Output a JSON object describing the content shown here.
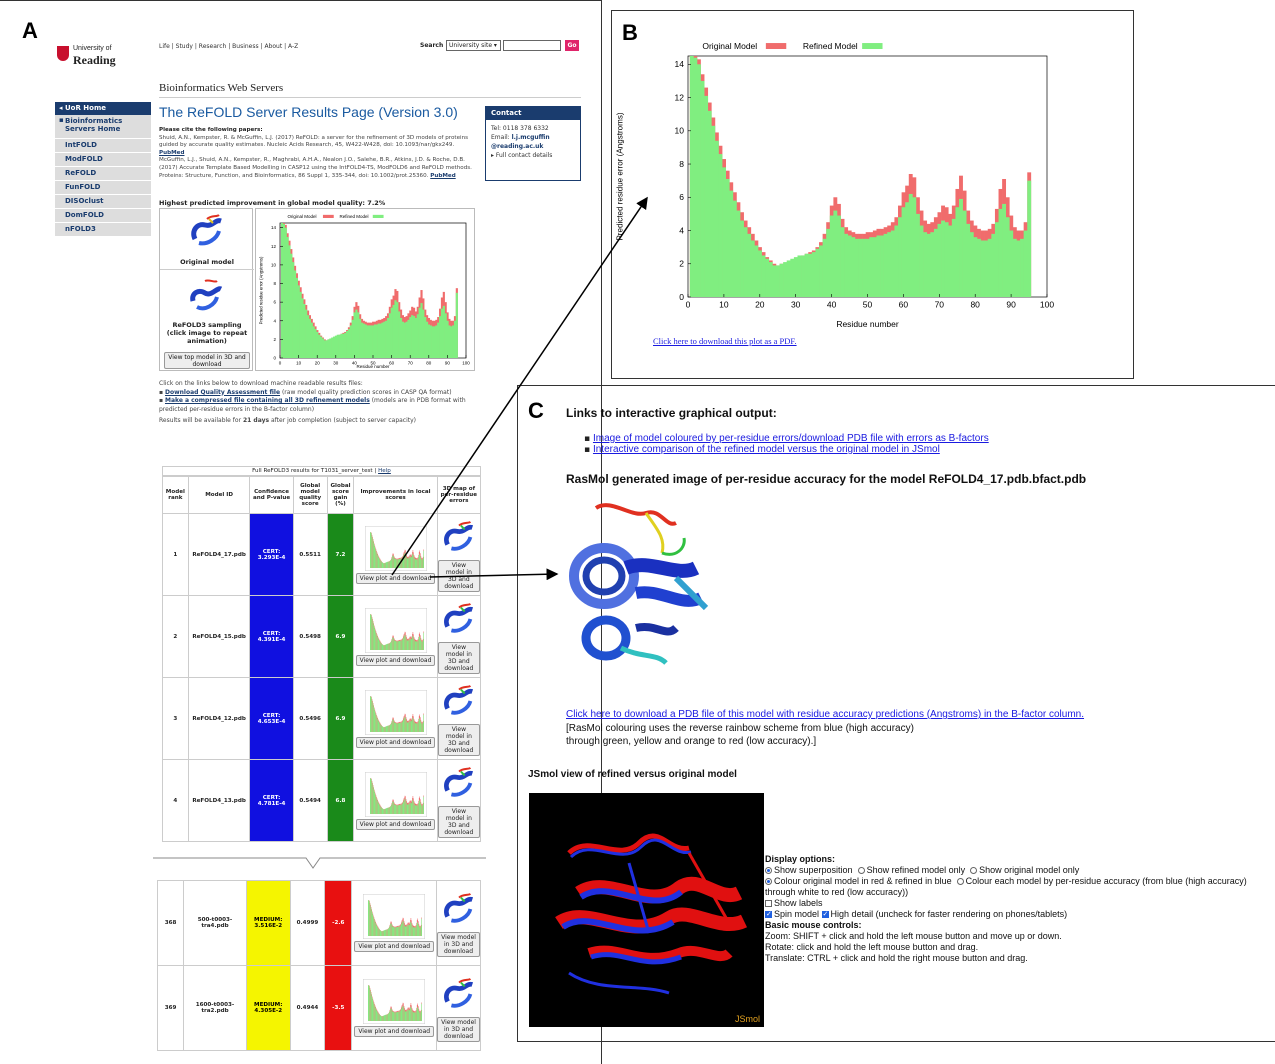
{
  "panels": {
    "a": "A",
    "b": "B",
    "c": "C"
  },
  "colors": {
    "original": "#f06c6c",
    "refined": "#80ee80",
    "uor_blue": "#1a3c6e",
    "link_blue": "#1a5aa0"
  },
  "site": {
    "logo_line1": "University of",
    "logo_line2": "Reading",
    "topnav": "Life | Study | Research | Business | About | A-Z",
    "search_label": "Search",
    "search_scope": "University site",
    "go": "Go",
    "section": "Bioinformatics Web Servers"
  },
  "sidebar": {
    "home": "◂ UoR Home",
    "items": [
      "Bioinformatics Servers Home",
      "IntFOLD",
      "ModFOLD",
      "ReFOLD",
      "FunFOLD",
      "DISOclust",
      "DomFOLD",
      "nFOLD3"
    ]
  },
  "main": {
    "title": "The ReFOLD Server Results Page (Version 3.0)",
    "cite_heading": "Please cite the following papers:",
    "cite1": "Shuid, A.N., Kempster, R. & McGuffin, L.J. (2017) ReFOLD: a server for the refinement of 3D models of proteins guided by accurate quality estimates. Nucleic Acids Research, 45, W422-W428, doi: 10.1093/nar/gkx249.",
    "cite2": "McGuffin, L.J., Shuid, A.N., Kempster, R., Maghrabi, A.H.A., Nealon J.O., Salehe, B.R., Atkins, J.D. & Roche, D.B. (2017) Accurate Template Based Modelling in CASP12 using the IntFOLD4-TS, ModFOLD6 and ReFOLD methods. Proteins: Structure, Function, and Bioinformatics, 86 Suppl 1, 335-344, doi: 10.1002/prot.25360.",
    "pubmed": "PubMed",
    "improvement": "Highest predicted improvement in global model quality: 7.2%",
    "original_model": "Original model",
    "refold_sampling": "ReFOLD3 sampling (click image to repeat animation)",
    "view_top": "View top model in 3D and download",
    "dl_intro": "Click on the links below to download machine readable results files:",
    "dl1_link": "Download Quality Assessment file",
    "dl1_rest": "(raw model quality prediction scores in CASP QA format)",
    "dl2_link": "Make a compressed file containing all 3D refinement models",
    "dl2_rest": "(models are in PDB format with predicted per-residue errors in the B-factor column)",
    "avail_pre": "Results will be available for",
    "avail_days": "21 days",
    "avail_post": "after job completion (subject to server capacity)"
  },
  "contact": {
    "heading": "Contact",
    "tel": "Tel: 0118 378 6332",
    "email_label": "Email:",
    "email1": "l.j.mcguffin",
    "email2": "@reading.ac.uk",
    "full": "▸ Full contact details"
  },
  "table": {
    "title": "Full ReFOLD3 results for T1031_server_test |",
    "help": "Help",
    "headers": [
      "Model rank",
      "Model ID",
      "Confidence and P-value",
      "Global model quality score",
      "Global score gain (%)",
      "Improvements in local scores",
      "3D map of per-residue errors"
    ],
    "view_plot": "View plot and download",
    "view_model": "View model in 3D and download",
    "rows": [
      {
        "rank": "1",
        "id": "ReFOLD4_17.pdb",
        "conf": "CERT: 3.293E-4",
        "score": "0.5511",
        "gain": "7.2",
        "level": "cert"
      },
      {
        "rank": "2",
        "id": "ReFOLD4_15.pdb",
        "conf": "CERT: 4.391E-4",
        "score": "0.5498",
        "gain": "6.9",
        "level": "cert"
      },
      {
        "rank": "3",
        "id": "ReFOLD4_12.pdb",
        "conf": "CERT: 4.653E-4",
        "score": "0.5496",
        "gain": "6.9",
        "level": "cert"
      },
      {
        "rank": "4",
        "id": "ReFOLD4_13.pdb",
        "conf": "CERT: 4.781E-4",
        "score": "0.5494",
        "gain": "6.8",
        "level": "cert"
      }
    ],
    "rows_bottom": [
      {
        "rank": "368",
        "id": "500-t0003-tra4.pdb",
        "conf": "MEDIUM: 3.516E-2",
        "score": "0.4999",
        "gain": "-2.6",
        "level": "medium"
      },
      {
        "rank": "369",
        "id": "1600-t0003-tra2.pdb",
        "conf": "MEDIUM: 4.305E-2",
        "score": "0.4944",
        "gain": "-3.5",
        "level": "medium"
      }
    ]
  },
  "chart_data": {
    "type": "bar",
    "title": "",
    "xlabel": "Residue number",
    "ylabel": "Predicted residue error (Angstroms)",
    "xlim": [
      0,
      100
    ],
    "ylim": [
      0,
      14.5
    ],
    "xticks": [
      0,
      10,
      20,
      30,
      40,
      50,
      60,
      70,
      80,
      90,
      100
    ],
    "yticks": [
      0,
      2,
      4,
      6,
      8,
      10,
      12,
      14
    ],
    "legend_position": "top-left",
    "x": [
      1,
      2,
      3,
      4,
      5,
      6,
      7,
      8,
      9,
      10,
      11,
      12,
      13,
      14,
      15,
      16,
      17,
      18,
      19,
      20,
      21,
      22,
      23,
      24,
      25,
      26,
      27,
      28,
      29,
      30,
      31,
      32,
      33,
      34,
      35,
      36,
      37,
      38,
      39,
      40,
      41,
      42,
      43,
      44,
      45,
      46,
      47,
      48,
      49,
      50,
      51,
      52,
      53,
      54,
      55,
      56,
      57,
      58,
      59,
      60,
      61,
      62,
      63,
      64,
      65,
      66,
      67,
      68,
      69,
      70,
      71,
      72,
      73,
      74,
      75,
      76,
      77,
      78,
      79,
      80,
      81,
      82,
      83,
      84,
      85,
      86,
      87,
      88,
      89,
      90,
      91,
      92,
      93,
      94,
      95
    ],
    "series": [
      {
        "name": "Original Model",
        "values": [
          14.5,
          14.5,
          14.3,
          13.4,
          12.6,
          11.7,
          10.8,
          9.9,
          9.1,
          8.3,
          7.6,
          6.9,
          6.3,
          5.7,
          5.1,
          4.6,
          4.2,
          3.8,
          3.4,
          3.0,
          2.7,
          2.4,
          2.2,
          2.0,
          1.9,
          2.0,
          2.0,
          2.1,
          2.2,
          2.3,
          2.4,
          2.5,
          2.6,
          2.7,
          2.8,
          3.0,
          3.3,
          3.8,
          4.5,
          5.5,
          6.0,
          5.6,
          4.7,
          4.2,
          4.0,
          3.9,
          3.8,
          3.8,
          3.8,
          3.9,
          3.9,
          4.0,
          4.1,
          4.1,
          4.2,
          4.3,
          4.5,
          4.8,
          5.5,
          6.3,
          6.7,
          7.4,
          7.2,
          6.0,
          5.2,
          4.6,
          4.4,
          4.5,
          4.8,
          5.1,
          5.5,
          5.4,
          5.0,
          5.5,
          6.5,
          7.3,
          6.4,
          5.2,
          4.6,
          4.3,
          4.1,
          4.0,
          4.0,
          4.1,
          4.4,
          5.3,
          6.5,
          7.1,
          6.0,
          4.9,
          4.2,
          4.0,
          4.0,
          4.5,
          7.5
        ]
      },
      {
        "name": "Refined Model",
        "values": [
          14.5,
          14.4,
          14.0,
          13.0,
          12.1,
          11.2,
          10.3,
          9.4,
          8.6,
          7.8,
          7.1,
          6.4,
          5.8,
          5.2,
          4.6,
          4.2,
          3.8,
          3.4,
          3.1,
          2.8,
          2.5,
          2.3,
          2.1,
          1.9,
          1.9,
          2.0,
          2.1,
          2.2,
          2.3,
          2.4,
          2.5,
          2.5,
          2.6,
          2.6,
          2.7,
          2.9,
          3.1,
          3.5,
          4.1,
          4.9,
          5.2,
          4.9,
          4.2,
          3.8,
          3.7,
          3.6,
          3.5,
          3.5,
          3.5,
          3.5,
          3.6,
          3.6,
          3.7,
          3.7,
          3.8,
          3.9,
          4.0,
          4.3,
          4.8,
          5.4,
          5.7,
          6.2,
          6.0,
          5.0,
          4.3,
          3.9,
          3.8,
          3.9,
          4.1,
          4.4,
          4.6,
          4.5,
          4.3,
          4.7,
          5.4,
          5.9,
          5.2,
          4.4,
          3.9,
          3.6,
          3.5,
          3.4,
          3.4,
          3.5,
          3.8,
          4.5,
          5.3,
          5.6,
          4.8,
          4.0,
          3.5,
          3.4,
          3.5,
          4.0,
          7.0
        ]
      }
    ]
  },
  "panel_b": {
    "pdf_link": "Click here to download this plot as a PDF."
  },
  "panel_c": {
    "links_heading": "Links to interactive graphical output:",
    "link1": "Image of model coloured by per-residue errors/download PDB file with errors as B-factors",
    "link2": "Interactive comparison of the refined model versus the original model in JSmol",
    "rasmol_heading": "RasMol generated image of per-residue accuracy for the model ReFOLD4_17.pdb.bfact.pdb",
    "pdb_link": "Click here to download a PDB file of this model with residue accuracy predictions (Angstroms) in the B-factor column.",
    "rasmol_note1": "[RasMol colouring uses the reverse rainbow scheme from blue (high accuracy)",
    "rasmol_note2": "through green, yellow and orange to red (low accuracy).]",
    "jsmol_heading": "JSmol view of refined versus original model",
    "jsmol_label": "JSmol",
    "display_options": "Display options:",
    "opt_superposition": "Show superposition",
    "opt_refined_only": "Show refined model only",
    "opt_original_only": "Show original model only",
    "opt_colour_rb": "Colour original model in red & refined in blue",
    "opt_colour_acc": "Colour each model by per-residue accuracy (from blue (high accuracy)",
    "opt_colour_acc2": "through white to red (low accuracy))",
    "opt_labels": "Show labels",
    "opt_spin": "Spin model",
    "opt_highdetail": "High detail (uncheck for faster rendering on phones/tablets)",
    "mouse_heading": "Basic mouse controls:",
    "zoom": "Zoom: SHIFT + click and hold the left mouse button and move up or down.",
    "rotate": "Rotate: click and hold the left mouse button and drag.",
    "translate": "Translate: CTRL + click and hold the right mouse button and drag."
  }
}
